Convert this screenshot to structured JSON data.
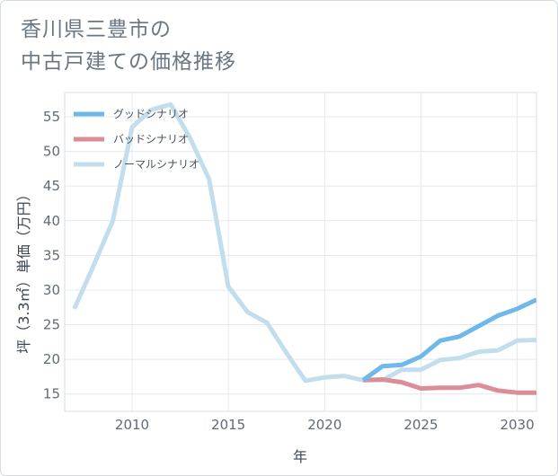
{
  "title": {
    "line1": "香川県三豊市の",
    "line2": "中古戸建ての価格推移"
  },
  "chart_data": {
    "type": "line",
    "xlabel": "年",
    "ylabel": "坪（3.3㎡）単価（万円）",
    "xlim": [
      2006.5,
      2031
    ],
    "ylim": [
      12.5,
      58.5
    ],
    "xticks": [
      2010,
      2015,
      2020,
      2025,
      2030
    ],
    "yticks": [
      15,
      20,
      25,
      30,
      35,
      40,
      45,
      50,
      55
    ],
    "grid": true,
    "legend_position": "top-left",
    "series": [
      {
        "name": "グッドシナリオ",
        "color": "#6fb8ea",
        "x": [
          2022,
          2023,
          2024,
          2025,
          2026,
          2027,
          2028,
          2029,
          2030,
          2031
        ],
        "y": [
          17.0,
          19.0,
          19.2,
          20.4,
          22.7,
          23.3,
          24.8,
          26.3,
          27.3,
          28.6
        ]
      },
      {
        "name": "バッドシナリオ",
        "color": "#db8e97",
        "x": [
          2022,
          2023,
          2024,
          2025,
          2026,
          2027,
          2028,
          2029,
          2030,
          2031
        ],
        "y": [
          17.0,
          17.1,
          16.7,
          15.8,
          15.9,
          15.9,
          16.3,
          15.5,
          15.2,
          15.2
        ]
      },
      {
        "name": "ノーマルシナリオ",
        "color": "#c2deed",
        "x": [
          2007,
          2008,
          2009,
          2010,
          2011,
          2012,
          2013,
          2014,
          2015,
          2016,
          2017,
          2018,
          2019,
          2020,
          2021,
          2022,
          2023,
          2024,
          2025,
          2026,
          2027,
          2028,
          2029,
          2030,
          2031
        ],
        "y": [
          27.3,
          33.5,
          40.0,
          53.5,
          56.0,
          56.8,
          52.0,
          46.0,
          30.5,
          26.8,
          25.3,
          21.0,
          16.9,
          17.4,
          17.6,
          17.0,
          17.0,
          18.5,
          18.5,
          19.9,
          20.2,
          21.1,
          21.3,
          22.7,
          22.8
        ]
      }
    ]
  }
}
